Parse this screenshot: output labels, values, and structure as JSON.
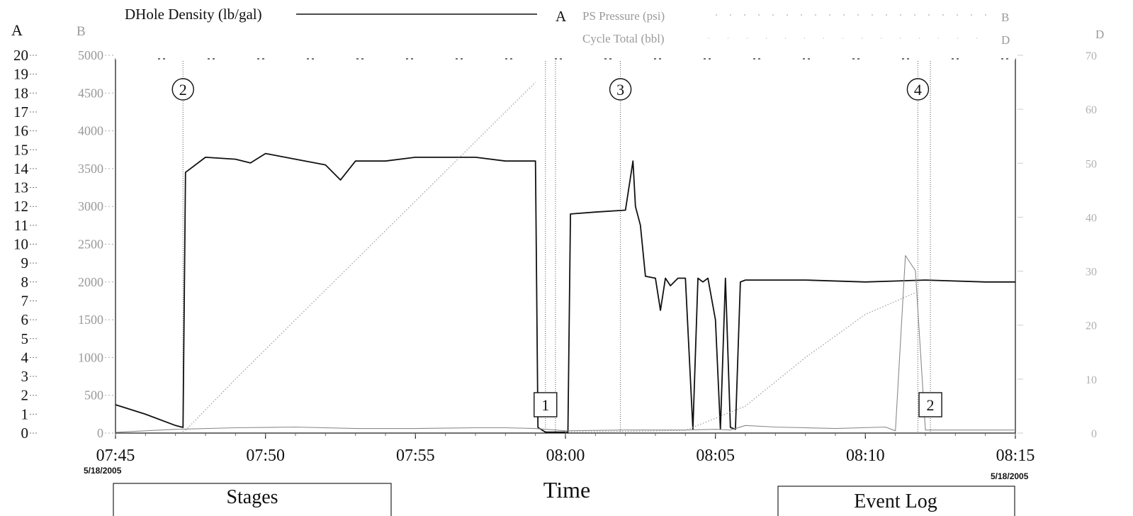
{
  "chart_data": {
    "type": "line",
    "x_ticks": [
      "07:45",
      "07:50",
      "07:55",
      "08:00",
      "08:05",
      "08:10",
      "08:15"
    ],
    "x_start_date": "5/18/2005",
    "x_end_date": "5/18/2005",
    "xlabel": "Time",
    "xlim": [
      "07:45",
      "08:15"
    ],
    "axes": {
      "A": {
        "label": "A",
        "range": [
          0,
          20
        ],
        "ticks": [
          0,
          1,
          2,
          3,
          4,
          5,
          6,
          7,
          8,
          9,
          10,
          11,
          12,
          13,
          14,
          15,
          16,
          17,
          18,
          19,
          20
        ]
      },
      "B": {
        "label": "B",
        "range": [
          0,
          5000
        ],
        "ticks": [
          0,
          500,
          1000,
          1500,
          2000,
          2500,
          3000,
          3500,
          4000,
          4500,
          5000
        ]
      },
      "D": {
        "label": "D",
        "range": [
          0,
          70
        ],
        "ticks": [
          0,
          10,
          20,
          30,
          40,
          50,
          60,
          70
        ]
      }
    },
    "legend": [
      {
        "name": "DHole Density (lb/gal)",
        "axis": "A",
        "color": "#111111"
      },
      {
        "name": "PS Pressure (psi)",
        "axis": "B",
        "color": "#888888"
      },
      {
        "name": "Cycle Total (bbl)",
        "axis": "D",
        "color": "#aaaaaa"
      }
    ],
    "series": [
      {
        "name": "DHole Density (lb/gal)",
        "axis": "A",
        "x": [
          "07:45",
          "07:46",
          "07:47",
          "07:47:15",
          "07:47:20",
          "07:48",
          "07:49",
          "07:49:30",
          "07:50",
          "07:50:20",
          "07:51",
          "07:52",
          "07:52:30",
          "07:53",
          "07:54",
          "07:55",
          "07:56",
          "07:57",
          "07:58",
          "07:59",
          "07:59:05",
          "07:59:20",
          "08:00",
          "08:00:05",
          "08:00:10",
          "08:01",
          "08:02",
          "08:02:15",
          "08:02:20",
          "08:02:30",
          "08:02:40",
          "08:03",
          "08:03:10",
          "08:03:20",
          "08:03:30",
          "08:03:45",
          "08:04",
          "08:04:15",
          "08:04:25",
          "08:04:35",
          "08:04:45",
          "08:05",
          "08:05:10",
          "08:05:20",
          "08:05:30",
          "08:05:40",
          "08:05:50",
          "08:06",
          "08:08",
          "08:10",
          "08:12",
          "08:14",
          "08:15"
        ],
        "values": [
          1.5,
          1.0,
          0.4,
          0.3,
          13.8,
          14.6,
          14.5,
          14.3,
          14.8,
          14.7,
          14.5,
          14.2,
          13.4,
          14.4,
          14.4,
          14.6,
          14.6,
          14.6,
          14.4,
          14.4,
          0.3,
          0.05,
          0.05,
          0.05,
          11.6,
          11.7,
          11.8,
          14.4,
          12.0,
          11.0,
          8.3,
          8.2,
          6.5,
          8.2,
          7.8,
          8.2,
          8.2,
          0.2,
          8.2,
          8.0,
          8.2,
          6.0,
          0.2,
          8.2,
          0.3,
          0.2,
          8.0,
          8.1,
          8.1,
          8.0,
          8.1,
          8.0,
          8.0
        ]
      },
      {
        "name": "PS Pressure (psi)",
        "axis": "B",
        "x": [
          "07:45",
          "07:47",
          "07:49",
          "07:51",
          "07:53",
          "07:55",
          "07:57",
          "07:58",
          "07:59",
          "08:00",
          "08:02",
          "08:04",
          "08:05",
          "08:05:30",
          "08:06",
          "08:07",
          "08:09",
          "08:10:40",
          "08:11",
          "08:11:20",
          "08:11:40",
          "08:12",
          "08:14",
          "08:15"
        ],
        "values": [
          10,
          50,
          70,
          80,
          60,
          60,
          70,
          70,
          60,
          30,
          40,
          40,
          50,
          40,
          100,
          80,
          60,
          80,
          30,
          2350,
          2150,
          40,
          40,
          40
        ]
      },
      {
        "name": "Cycle Total (bbl)",
        "axis": "D",
        "x": [
          "07:47:20",
          "07:49",
          "07:51",
          "07:53",
          "07:55",
          "07:57",
          "07:59",
          "08:00",
          "08:02",
          "08:04",
          "08:06",
          "08:08",
          "08:10",
          "08:11:40"
        ],
        "values": [
          0.5,
          10,
          21,
          32,
          43,
          54,
          65,
          0.2,
          0.3,
          0.5,
          5,
          14,
          22,
          26
        ]
      }
    ],
    "stage_markers": [
      {
        "label": "2",
        "x": "07:47:15"
      },
      {
        "label": "3",
        "x": "08:01:50"
      },
      {
        "label": "4",
        "x": "08:11:45"
      }
    ],
    "event_markers": [
      {
        "label": "1",
        "x": "07:59:20"
      },
      {
        "label": "2",
        "x": "08:12:10"
      }
    ],
    "vertical_marker_lines": [
      "07:47:15",
      "07:59:20",
      "07:59:40",
      "08:01:50",
      "08:11:45",
      "08:12:10"
    ]
  },
  "panels": {
    "stages_label": "Stages",
    "event_log_label": "Event Log"
  }
}
